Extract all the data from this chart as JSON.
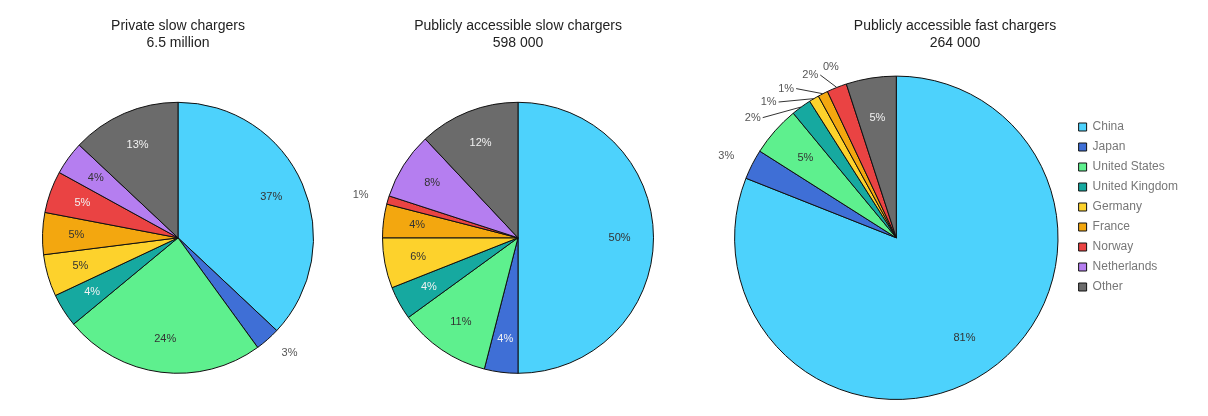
{
  "chart_data": [
    {
      "type": "pie",
      "title": "Private slow chargers",
      "subtitle": "6.5 million",
      "categories": [
        null,
        null,
        null,
        null,
        null,
        null,
        null,
        null,
        null
      ],
      "values": [
        37,
        3,
        24,
        4,
        5,
        5,
        5,
        4,
        13
      ],
      "value_labels": [
        "37%",
        "3%",
        "24%",
        "4%",
        "5%",
        "5%",
        "5%",
        "4%",
        "13%"
      ],
      "colors": [
        "#4dd2fc",
        "#3f6fd6",
        "#5ef08e",
        "#16a9a0",
        "#fdd22c",
        "#f3a70f",
        "#ea4343",
        "#b57ef0",
        "#6b6b6b"
      ],
      "legend": false
    },
    {
      "type": "pie",
      "title": "Publicly accessible slow chargers",
      "subtitle": "598 000",
      "categories": [
        null,
        null,
        null,
        null,
        null,
        null,
        null,
        null,
        null
      ],
      "values": [
        50,
        4,
        11,
        4,
        6,
        4,
        1,
        8,
        12
      ],
      "value_labels": [
        "50%",
        "4%",
        "11%",
        "4%",
        "6%",
        "4%",
        "1%",
        "8%",
        "12%"
      ],
      "colors": [
        "#4dd2fc",
        "#3f6fd6",
        "#5ef08e",
        "#16a9a0",
        "#fdd22c",
        "#f3a70f",
        "#ea4343",
        "#b57ef0",
        "#6b6b6b"
      ],
      "legend": false
    },
    {
      "type": "pie",
      "title": "Publicly accessible fast chargers",
      "subtitle": "264 000",
      "categories": [
        "China",
        "Japan",
        "United States",
        "United Kingdom",
        "Germany",
        "France",
        "Norway",
        "Netherlands",
        "Other"
      ],
      "values": [
        81,
        3,
        5,
        2,
        1,
        1,
        2,
        0,
        5
      ],
      "value_labels": [
        "81%",
        "3%",
        "5%",
        "2%",
        "1%",
        "1%",
        "2%",
        "0%",
        "5%"
      ],
      "colors": [
        "#4dd2fc",
        "#3f6fd6",
        "#5ef08e",
        "#16a9a0",
        "#fdd22c",
        "#f3a70f",
        "#ea4343",
        "#b57ef0",
        "#6b6b6b"
      ],
      "legend": "right"
    }
  ]
}
